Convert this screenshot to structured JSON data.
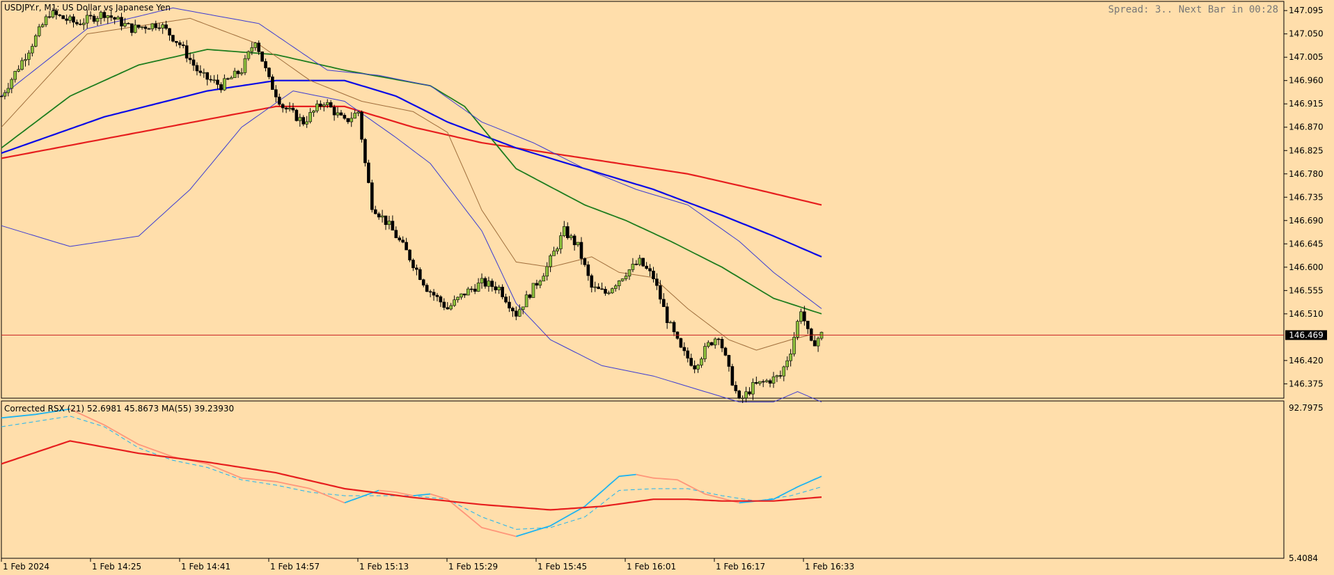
{
  "chart_data": [
    {
      "type": "candlestick",
      "symbol_label": "USDJPY.r, M1:  US Dollar vs Japanese Yen",
      "status_text": "Spread: 3.. Next Bar in 00:28",
      "current_price": 146.469,
      "current_price_label": "146.469",
      "y_ticks": [
        "147.095",
        "147.050",
        "147.005",
        "146.960",
        "146.915",
        "146.870",
        "146.825",
        "146.780",
        "146.735",
        "146.690",
        "146.645",
        "146.600",
        "146.555",
        "146.510",
        "146.420",
        "146.375"
      ],
      "x_labels": [
        "1 Feb 2024",
        "1 Feb 14:25",
        "1 Feb 14:41",
        "1 Feb 14:57",
        "1 Feb 15:13",
        "1 Feb 15:29",
        "1 Feb 15:45",
        "1 Feb 16:01",
        "1 Feb 16:17",
        "1 Feb 16:33"
      ],
      "ylim": [
        146.35,
        147.11
      ],
      "colors": {
        "bull": "#8dbf3c",
        "bear": "#000000",
        "ma_fast": "#a06e3c",
        "ma_green": "#1e7d1e",
        "ma_blue": "#0000e6",
        "ma_red": "#e61e1e",
        "band": "#3c3cd2",
        "price_line": "#c81e1e"
      },
      "candles_anchor": [
        {
          "t": 0,
          "p": 146.93
        },
        {
          "t": 8,
          "p": 147.02
        },
        {
          "t": 14,
          "p": 147.09
        },
        {
          "t": 22,
          "p": 147.07
        },
        {
          "t": 30,
          "p": 147.09
        },
        {
          "t": 38,
          "p": 147.06
        },
        {
          "t": 46,
          "p": 147.07
        },
        {
          "t": 52,
          "p": 147.03
        },
        {
          "t": 58,
          "p": 146.97
        },
        {
          "t": 64,
          "p": 146.95
        },
        {
          "t": 70,
          "p": 146.98
        },
        {
          "t": 74,
          "p": 147.04
        },
        {
          "t": 78,
          "p": 146.96
        },
        {
          "t": 82,
          "p": 146.91
        },
        {
          "t": 88,
          "p": 146.88
        },
        {
          "t": 94,
          "p": 146.92
        },
        {
          "t": 100,
          "p": 146.88
        },
        {
          "t": 104,
          "p": 146.9
        },
        {
          "t": 106,
          "p": 146.8
        },
        {
          "t": 108,
          "p": 146.72
        },
        {
          "t": 113,
          "p": 146.68
        },
        {
          "t": 118,
          "p": 146.63
        },
        {
          "t": 124,
          "p": 146.56
        },
        {
          "t": 130,
          "p": 146.52
        },
        {
          "t": 135,
          "p": 146.55
        },
        {
          "t": 140,
          "p": 146.57
        },
        {
          "t": 145,
          "p": 146.56
        },
        {
          "t": 150,
          "p": 146.51
        },
        {
          "t": 154,
          "p": 146.55
        },
        {
          "t": 159,
          "p": 146.6
        },
        {
          "t": 164,
          "p": 146.67
        },
        {
          "t": 168,
          "p": 146.64
        },
        {
          "t": 172,
          "p": 146.56
        },
        {
          "t": 176,
          "p": 146.55
        },
        {
          "t": 182,
          "p": 146.59
        },
        {
          "t": 186,
          "p": 146.61
        },
        {
          "t": 190,
          "p": 146.58
        },
        {
          "t": 194,
          "p": 146.5
        },
        {
          "t": 198,
          "p": 146.44
        },
        {
          "t": 202,
          "p": 146.41
        },
        {
          "t": 206,
          "p": 146.45
        },
        {
          "t": 209,
          "p": 146.47
        },
        {
          "t": 212,
          "p": 146.4
        },
        {
          "t": 215,
          "p": 146.34
        },
        {
          "t": 219,
          "p": 146.37
        },
        {
          "t": 223,
          "p": 146.38
        },
        {
          "t": 227,
          "p": 146.39
        },
        {
          "t": 230,
          "p": 146.44
        },
        {
          "t": 233,
          "p": 146.52
        },
        {
          "t": 236,
          "p": 146.45
        },
        {
          "t": 239,
          "p": 146.47
        }
      ],
      "series": [
        {
          "name": "",
          "key": "ma_red",
          "points": [
            [
              0,
              146.81
            ],
            [
              40,
              146.86
            ],
            [
              80,
              146.91
            ],
            [
              100,
              146.91
            ],
            [
              120,
              146.87
            ],
            [
              140,
              146.84
            ],
            [
              160,
              146.82
            ],
            [
              180,
              146.8
            ],
            [
              200,
              146.78
            ],
            [
              220,
              146.75
            ],
            [
              239,
              146.72
            ]
          ]
        },
        {
          "name": "",
          "key": "ma_blue",
          "points": [
            [
              0,
              146.82
            ],
            [
              30,
              146.89
            ],
            [
              60,
              146.94
            ],
            [
              80,
              146.96
            ],
            [
              100,
              146.96
            ],
            [
              115,
              146.93
            ],
            [
              130,
              146.88
            ],
            [
              150,
              146.83
            ],
            [
              170,
              146.79
            ],
            [
              190,
              146.75
            ],
            [
              210,
              146.7
            ],
            [
              225,
              146.66
            ],
            [
              239,
              146.62
            ]
          ]
        },
        {
          "name": "",
          "key": "ma_green",
          "points": [
            [
              0,
              146.83
            ],
            [
              20,
              146.93
            ],
            [
              40,
              146.99
            ],
            [
              60,
              147.02
            ],
            [
              80,
              147.01
            ],
            [
              100,
              146.98
            ],
            [
              125,
              146.95
            ],
            [
              135,
              146.91
            ],
            [
              150,
              146.79
            ],
            [
              170,
              146.72
            ],
            [
              182,
              146.69
            ],
            [
              195,
              146.65
            ],
            [
              210,
              146.6
            ],
            [
              225,
              146.54
            ],
            [
              239,
              146.51
            ]
          ]
        },
        {
          "name": "",
          "key": "ma_fast",
          "points": [
            [
              0,
              146.87
            ],
            [
              25,
              147.05
            ],
            [
              55,
              147.08
            ],
            [
              75,
              147.03
            ],
            [
              90,
              146.96
            ],
            [
              105,
              146.92
            ],
            [
              120,
              146.9
            ],
            [
              130,
              146.86
            ],
            [
              140,
              146.71
            ],
            [
              150,
              146.61
            ],
            [
              160,
              146.6
            ],
            [
              172,
              146.62
            ],
            [
              180,
              146.59
            ],
            [
              190,
              146.58
            ],
            [
              200,
              146.52
            ],
            [
              212,
              146.46
            ],
            [
              220,
              146.44
            ],
            [
              230,
              146.46
            ],
            [
              236,
              146.47
            ],
            [
              239,
              146.47
            ]
          ]
        },
        {
          "name": "",
          "key": "band_upper",
          "points": [
            [
              0,
              146.93
            ],
            [
              25,
              147.06
            ],
            [
              50,
              147.1
            ],
            [
              75,
              147.07
            ],
            [
              95,
              146.98
            ],
            [
              110,
              146.97
            ],
            [
              125,
              146.95
            ],
            [
              140,
              146.88
            ],
            [
              155,
              146.84
            ],
            [
              170,
              146.79
            ],
            [
              185,
              146.75
            ],
            [
              200,
              146.72
            ],
            [
              215,
              146.65
            ],
            [
              225,
              146.59
            ],
            [
              239,
              146.52
            ]
          ]
        },
        {
          "name": "",
          "key": "band_lower",
          "points": [
            [
              0,
              146.68
            ],
            [
              20,
              146.64
            ],
            [
              40,
              146.66
            ],
            [
              55,
              146.75
            ],
            [
              70,
              146.87
            ],
            [
              85,
              146.94
            ],
            [
              100,
              146.92
            ],
            [
              115,
              146.85
            ],
            [
              125,
              146.8
            ],
            [
              140,
              146.67
            ],
            [
              150,
              146.53
            ],
            [
              160,
              146.46
            ],
            [
              175,
              146.41
            ],
            [
              190,
              146.39
            ],
            [
              205,
              146.36
            ],
            [
              215,
              146.34
            ],
            [
              225,
              146.34
            ],
            [
              232,
              146.36
            ],
            [
              239,
              146.34
            ]
          ]
        }
      ]
    },
    {
      "type": "line",
      "indicator_label": "Corrected RSX (21) 52.6981 45.8673 MA(55) 39.23930",
      "y_ticks": [
        "92.7975",
        "5.4084"
      ],
      "ylim": [
        5.4084,
        92.7975
      ],
      "colors": {
        "rsx_up": "#1eb4f0",
        "rsx_down": "#ff967a",
        "signal": "#1eb4f0",
        "ma": "#e61e1e"
      },
      "series": [
        {
          "name": "",
          "key": "rsx",
          "points": [
            [
              0,
              84
            ],
            [
              10,
              86
            ],
            [
              20,
              89
            ],
            [
              30,
              80
            ],
            [
              40,
              69
            ],
            [
              50,
              62
            ],
            [
              60,
              58
            ],
            [
              70,
              50
            ],
            [
              80,
              48
            ],
            [
              90,
              44
            ],
            [
              100,
              36
            ],
            [
              110,
              43
            ],
            [
              115,
              42
            ],
            [
              120,
              40
            ],
            [
              125,
              41
            ],
            [
              130,
              38
            ],
            [
              140,
              22
            ],
            [
              150,
              17
            ],
            [
              160,
              23
            ],
            [
              170,
              34
            ],
            [
              180,
              51
            ],
            [
              185,
              52
            ],
            [
              190,
              50
            ],
            [
              197,
              49
            ],
            [
              205,
              41
            ],
            [
              215,
              36
            ],
            [
              225,
              38
            ],
            [
              232,
              45
            ],
            [
              239,
              51
            ]
          ]
        },
        {
          "name": "",
          "key": "rsx_signal",
          "points": [
            [
              0,
              79
            ],
            [
              10,
              82
            ],
            [
              20,
              85
            ],
            [
              30,
              79
            ],
            [
              40,
              67
            ],
            [
              50,
              60
            ],
            [
              60,
              56
            ],
            [
              70,
              49
            ],
            [
              80,
              46
            ],
            [
              90,
              42
            ],
            [
              100,
              40
            ],
            [
              110,
              40
            ],
            [
              120,
              40
            ],
            [
              130,
              38
            ],
            [
              140,
              28
            ],
            [
              150,
              21
            ],
            [
              160,
              22
            ],
            [
              170,
              28
            ],
            [
              180,
              43
            ],
            [
              190,
              44
            ],
            [
              200,
              44
            ],
            [
              210,
              40
            ],
            [
              220,
              37
            ],
            [
              230,
              40
            ],
            [
              239,
              45
            ]
          ]
        },
        {
          "name": "",
          "key": "rsx_ma",
          "points": [
            [
              0,
              58
            ],
            [
              20,
              71
            ],
            [
              40,
              64
            ],
            [
              60,
              59
            ],
            [
              80,
              53
            ],
            [
              100,
              44
            ],
            [
              120,
              39
            ],
            [
              140,
              35
            ],
            [
              160,
              32
            ],
            [
              175,
              34
            ],
            [
              190,
              38
            ],
            [
              200,
              38
            ],
            [
              210,
              37
            ],
            [
              225,
              37
            ],
            [
              239,
              39.24
            ]
          ]
        }
      ]
    }
  ]
}
